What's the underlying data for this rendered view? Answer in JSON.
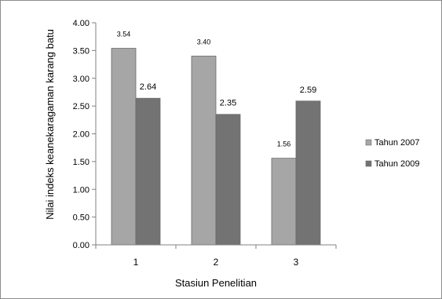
{
  "chart_data": {
    "type": "bar",
    "categories": [
      "1",
      "2",
      "3"
    ],
    "series": [
      {
        "name": "Tahun 2007",
        "values": [
          3.54,
          3.4,
          1.56
        ],
        "labels": [
          "3.54",
          "3.40",
          "1.56"
        ],
        "color": "#a6a6a6"
      },
      {
        "name": "Tahun 2009",
        "values": [
          2.64,
          2.35,
          2.59
        ],
        "labels": [
          "2.64",
          "2.35",
          "2.59"
        ],
        "color": "#737373"
      }
    ],
    "xlabel": "Stasiun Penelitian",
    "ylabel": "Nilai indeks keanekaragaman karang batu",
    "ylim": [
      0,
      4
    ],
    "yticks": [
      "0.00",
      "0.50",
      "1.00",
      "1.50",
      "2.00",
      "2.50",
      "3.00",
      "3.50",
      "4.00"
    ],
    "grid": false,
    "legend": "right"
  }
}
